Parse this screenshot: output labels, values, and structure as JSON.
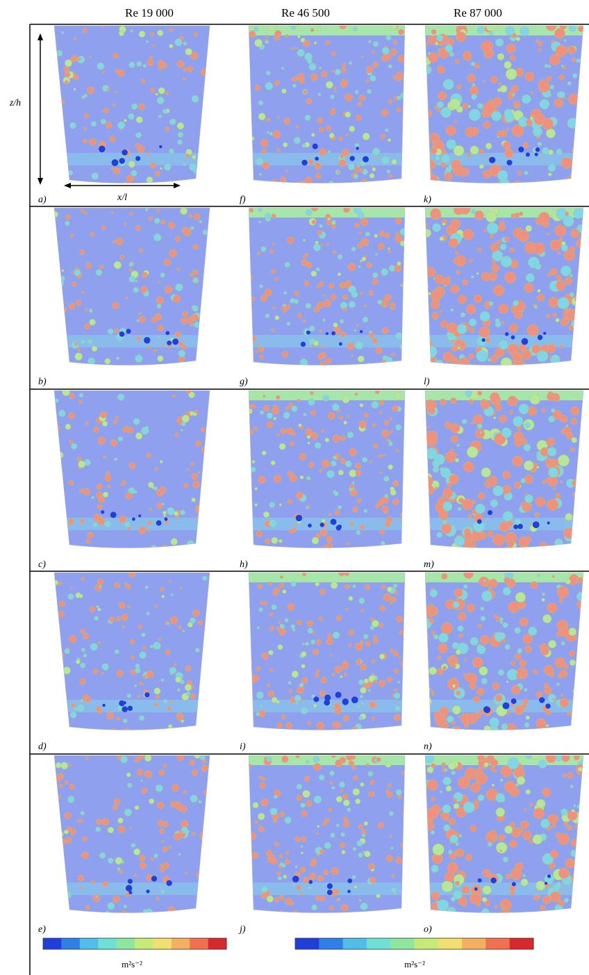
{
  "column_headers": [
    "Re 19 000",
    "Re 46 500",
    "Re 87 000"
  ],
  "axis_labels": {
    "z": "z/h",
    "x": "x/l"
  },
  "panels": [
    {
      "label": "a)"
    },
    {
      "label": "b)"
    },
    {
      "label": "c)"
    },
    {
      "label": "d)"
    },
    {
      "label": "e)"
    },
    {
      "label": "f)"
    },
    {
      "label": "g)"
    },
    {
      "label": "h)"
    },
    {
      "label": "i)"
    },
    {
      "label": "j)"
    },
    {
      "label": "k)"
    },
    {
      "label": "l)"
    },
    {
      "label": "m)"
    },
    {
      "label": "n)"
    },
    {
      "label": "o)"
    }
  ],
  "colorbars": [
    {
      "unit": "m²s⁻²"
    },
    {
      "unit": "m²s⁻²"
    }
  ]
}
